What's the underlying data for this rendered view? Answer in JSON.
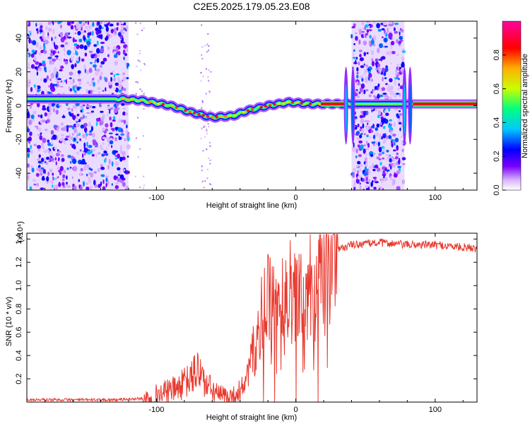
{
  "title": "C2E5.2025.179.05.23.E08",
  "chart_data": [
    {
      "type": "heatmap",
      "xlabel": "Height of straight line (km)",
      "ylabel": "Frequency (Hz)",
      "xlim": [
        -193,
        130
      ],
      "ylim": [
        -50,
        50
      ],
      "x_ticks": [
        -100,
        0,
        100
      ],
      "y_ticks": [
        -40,
        -20,
        0,
        20,
        40
      ],
      "colorbar": {
        "label": "Normalized spectral amplitude",
        "range": [
          0,
          1
        ],
        "ticks": [
          0.0,
          0.2,
          0.4,
          0.6,
          0.8
        ],
        "colors": [
          "#ffffff",
          "#7a00ff",
          "#0000ff",
          "#00c8ff",
          "#00ff80",
          "#c8ff00",
          "#ffb000",
          "#ff0000",
          "#ff00a0"
        ]
      },
      "ridge": {
        "x": [
          -193,
          -150,
          -125,
          -110,
          -90,
          -75,
          -60,
          -45,
          -35,
          -20,
          -5,
          10,
          20,
          36,
          42,
          78,
          84,
          130
        ],
        "frequency": [
          4,
          4,
          4,
          3,
          0,
          -4,
          -7,
          -6,
          -3,
          0,
          2,
          1,
          1,
          1,
          1,
          1,
          1,
          1
        ]
      },
      "noise_bands": [
        [
          -193,
          -120
        ],
        [
          40,
          78
        ]
      ]
    },
    {
      "type": "line",
      "xlabel": "Height of straight line (km)",
      "ylabel": "SNR (10 * v/v)",
      "y_multiplier": "(x10⁴)",
      "xlim": [
        -193,
        130
      ],
      "ylim": [
        0,
        1.45
      ],
      "x_ticks": [
        -100,
        0,
        100
      ],
      "y_ticks": [
        0.2,
        0.4,
        0.6,
        0.8,
        1.0,
        1.2,
        1.4
      ],
      "series": [
        {
          "color": "#e8392f",
          "x": [
            -193,
            -150,
            -130,
            -110,
            -95,
            -85,
            -75,
            -70,
            -65,
            -55,
            -45,
            -40,
            -35,
            -30,
            -25,
            -20,
            -15,
            -10,
            -5,
            0,
            5,
            10,
            15,
            20,
            25,
            30,
            35,
            40,
            50,
            60,
            70,
            80,
            90,
            100,
            110,
            120,
            130
          ],
          "values": [
            0.02,
            0.02,
            0.02,
            0.03,
            0.08,
            0.12,
            0.2,
            0.3,
            0.15,
            0.06,
            0.05,
            0.1,
            0.2,
            0.45,
            0.7,
            0.85,
            0.8,
            0.9,
            0.95,
            1.0,
            0.9,
            1.1,
            1.0,
            1.2,
            1.3,
            1.3,
            1.33,
            1.35,
            1.36,
            1.37,
            1.36,
            1.35,
            1.35,
            1.35,
            1.34,
            1.33,
            1.32
          ]
        }
      ]
    }
  ]
}
